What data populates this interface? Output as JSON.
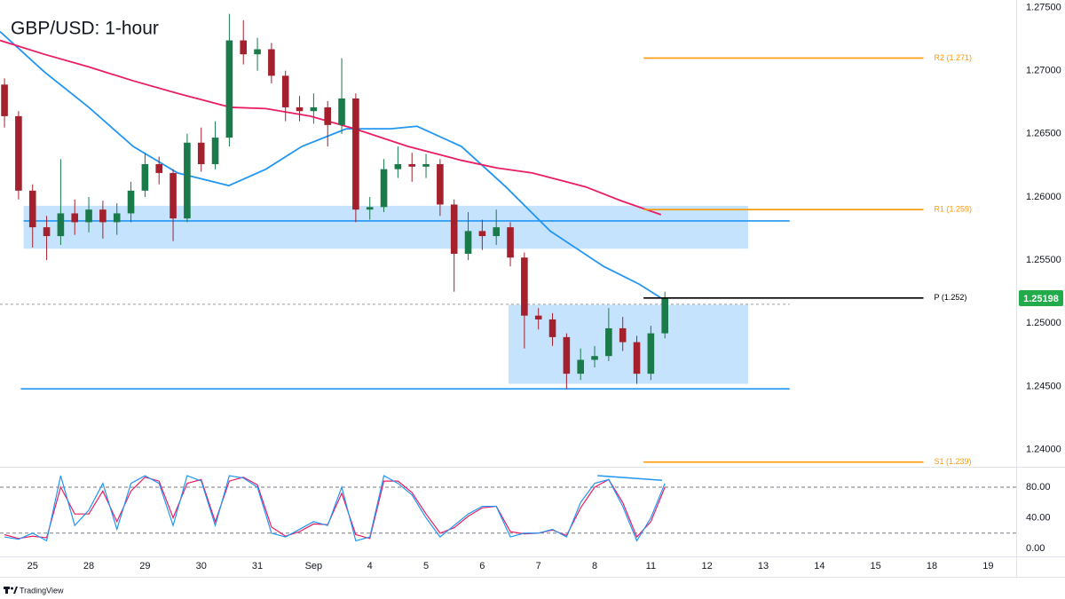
{
  "chart_data": [
    {
      "type": "candlestick",
      "title": "GBP/USD: 1-hour",
      "x": [
        -0.5,
        -0.25,
        0,
        0.25,
        0.5,
        0.75,
        1,
        1.25,
        1.5,
        1.75,
        2,
        2.25,
        2.5,
        2.75,
        3,
        3.25,
        3.5,
        3.75,
        4,
        4.25,
        4.5,
        4.75,
        5,
        5.25,
        5.5,
        5.75,
        6,
        6.25,
        6.5,
        6.75,
        7,
        7.25,
        7.5,
        7.75,
        8,
        8.25,
        8.5,
        8.75,
        9,
        9.25,
        9.5,
        9.75,
        10,
        10.25,
        10.5,
        10.75,
        11,
        11.25
      ],
      "open": [
        1.2689,
        1.2664,
        1.2605,
        1.2576,
        1.2569,
        1.2587,
        1.258,
        1.259,
        1.258,
        1.2587,
        1.2605,
        1.2626,
        1.2619,
        1.2583,
        1.2643,
        1.2626,
        1.2647,
        1.2724,
        1.2713,
        1.2717,
        1.2696,
        1.2671,
        1.2668,
        1.2671,
        1.2657,
        1.2678,
        1.259,
        1.2592,
        1.2622,
        1.2626,
        1.2624,
        1.2626,
        1.2594,
        1.2555,
        1.2573,
        1.2569,
        1.2576,
        1.2552,
        1.2506,
        1.2503,
        1.2489,
        1.246,
        1.2471,
        1.2474,
        1.2496,
        1.2485,
        1.246,
        1.2492
      ],
      "high": [
        1.2694,
        1.2668,
        1.261,
        1.2585,
        1.263,
        1.2598,
        1.26,
        1.2597,
        1.2595,
        1.2612,
        1.2635,
        1.2632,
        1.2622,
        1.265,
        1.2655,
        1.266,
        1.2745,
        1.274,
        1.2726,
        1.2722,
        1.27,
        1.268,
        1.2682,
        1.2676,
        1.271,
        1.2682,
        1.26,
        1.263,
        1.264,
        1.2635,
        1.2634,
        1.263,
        1.2598,
        1.2588,
        1.2582,
        1.259,
        1.258,
        1.2556,
        1.2512,
        1.2508,
        1.2492,
        1.248,
        1.2482,
        1.2512,
        1.2505,
        1.249,
        1.2498,
        1.2525
      ],
      "low": [
        1.2655,
        1.2598,
        1.256,
        1.255,
        1.2562,
        1.257,
        1.2572,
        1.2567,
        1.257,
        1.258,
        1.26,
        1.261,
        1.2565,
        1.258,
        1.262,
        1.2622,
        1.264,
        1.2705,
        1.27,
        1.269,
        1.266,
        1.266,
        1.2658,
        1.264,
        1.265,
        1.258,
        1.2582,
        1.2588,
        1.2615,
        1.2612,
        1.2615,
        1.2585,
        1.2525,
        1.255,
        1.2558,
        1.2562,
        1.2545,
        1.248,
        1.2495,
        1.2482,
        1.2448,
        1.2455,
        1.2465,
        1.247,
        1.2478,
        1.2452,
        1.2455,
        1.2488
      ],
      "close": [
        1.2664,
        1.2605,
        1.2576,
        1.2569,
        1.2587,
        1.258,
        1.259,
        1.258,
        1.2587,
        1.2605,
        1.2626,
        1.2619,
        1.2583,
        1.2643,
        1.2626,
        1.2647,
        1.2724,
        1.2713,
        1.2717,
        1.2696,
        1.2671,
        1.2668,
        1.2671,
        1.2657,
        1.2678,
        1.259,
        1.2592,
        1.2622,
        1.2626,
        1.2624,
        1.2626,
        1.2594,
        1.2555,
        1.2573,
        1.2569,
        1.2576,
        1.2552,
        1.2506,
        1.2503,
        1.2489,
        1.246,
        1.2471,
        1.2474,
        1.2496,
        1.2485,
        1.246,
        1.2492,
        1.25198
      ],
      "up_color": "#1b7a4a",
      "down_color": "#a3202c",
      "lines": [
        {
          "color": "#2196f3",
          "x": [
            -0.58,
            0.21,
            1.0,
            1.79,
            2.58,
            3.49,
            4.15,
            4.79,
            5.58,
            6.37,
            6.84,
            7.63,
            8.42,
            9.21,
            10.16,
            10.79,
            11.18
          ],
          "values": [
            1.2731,
            1.2699,
            1.2671,
            1.264,
            1.2619,
            1.2609,
            1.2622,
            1.264,
            1.2654,
            1.2654,
            1.2656,
            1.264,
            1.2608,
            1.2573,
            1.2545,
            1.2531,
            1.252
          ]
        },
        {
          "color": "#e91e63",
          "x": [
            -0.58,
            0.21,
            1.0,
            1.79,
            2.58,
            3.52,
            4.15,
            4.94,
            5.73,
            6.68,
            7.63,
            8.26,
            8.89,
            9.84,
            10.47,
            11.18
          ],
          "values": [
            1.2724,
            1.2713,
            1.2703,
            1.2692,
            1.2682,
            1.2671,
            1.267,
            1.2664,
            1.2654,
            1.264,
            1.2629,
            1.2623,
            1.2619,
            1.2608,
            1.2597,
            1.2586
          ]
        }
      ],
      "zones": [
        {
          "range": [
            1.2559,
            1.2593
          ],
          "x_range": [
            -0.16,
            12.73
          ],
          "color": "#bbdefb"
        },
        {
          "range": [
            1.2452,
            1.25146
          ],
          "x_range": [
            8.47,
            12.73
          ],
          "color": "#bbdefb"
        }
      ],
      "hlines": [
        {
          "value": 1.2581,
          "x_range": [
            -0.16,
            13.47
          ],
          "color": "#2196f3"
        },
        {
          "value": 1.2448,
          "x_range": [
            -0.21,
            13.47
          ],
          "color": "#2196f3"
        }
      ],
      "dotted_level": {
        "value": 1.2515,
        "x_range": [
          -0.58,
          13.47
        ],
        "color": "#9e9e9e"
      },
      "levels": [
        {
          "label": "R2 (1.271)",
          "value": 1.271,
          "x_range": [
            10.87,
            15.85
          ],
          "color": "#ff9800"
        },
        {
          "label": "R1 (1.259)",
          "value": 1.259,
          "x_range": [
            10.87,
            15.85
          ],
          "color": "#ff9800"
        },
        {
          "label": "P (1.252)",
          "value": 1.252,
          "x_range": [
            10.87,
            15.85
          ],
          "color": "#000000"
        },
        {
          "label": "S1 (1.239)",
          "value": 1.239,
          "x_range": [
            10.87,
            15.85
          ],
          "color": "#ff9800"
        }
      ],
      "last_price": 1.25198,
      "last_price_color": "#22ab4a",
      "xlim": [
        -0.58,
        17.5
      ],
      "ylim": [
        1.2387,
        1.2756
      ],
      "yticks": [
        {
          "value": 1.275,
          "label": "1.27500"
        },
        {
          "value": 1.27,
          "label": "1.27000"
        },
        {
          "value": 1.265,
          "label": "1.26500"
        },
        {
          "value": 1.26,
          "label": "1.26000"
        },
        {
          "value": 1.255,
          "label": "1.25500"
        },
        {
          "value": 1.25,
          "label": "1.25000"
        },
        {
          "value": 1.245,
          "label": "1.24500"
        },
        {
          "value": 1.24,
          "label": "1.24000"
        }
      ]
    },
    {
      "type": "line",
      "x": [
        -0.5,
        -0.25,
        0,
        0.25,
        0.5,
        0.75,
        1,
        1.25,
        1.5,
        1.75,
        2,
        2.25,
        2.5,
        2.75,
        3,
        3.25,
        3.5,
        3.75,
        4,
        4.25,
        4.5,
        4.75,
        5,
        5.25,
        5.5,
        5.75,
        6,
        6.25,
        6.5,
        6.75,
        7,
        7.25,
        7.5,
        7.75,
        8,
        8.25,
        8.5,
        8.75,
        9,
        9.25,
        9.5,
        9.75,
        10,
        10.25,
        10.5,
        10.75,
        11,
        11.25
      ],
      "series": [
        {
          "color": "#2196f3",
          "values": [
            15,
            12,
            20,
            10,
            95,
            30,
            50,
            85,
            25,
            85,
            95,
            85,
            30,
            95,
            88,
            30,
            95,
            92,
            80,
            20,
            15,
            25,
            35,
            30,
            80,
            10,
            15,
            95,
            85,
            70,
            40,
            15,
            30,
            45,
            55,
            55,
            15,
            20,
            20,
            25,
            15,
            60,
            85,
            90,
            55,
            10,
            40,
            85
          ]
        },
        {
          "color": "#e91e63",
          "values": [
            18,
            13,
            16,
            14,
            80,
            45,
            45,
            75,
            35,
            75,
            93,
            88,
            40,
            85,
            90,
            35,
            88,
            93,
            83,
            28,
            16,
            22,
            32,
            31,
            72,
            18,
            13,
            88,
            88,
            73,
            45,
            20,
            27,
            42,
            53,
            55,
            22,
            19,
            20,
            24,
            17,
            53,
            80,
            90,
            60,
            15,
            35,
            80
          ]
        }
      ],
      "trendline": {
        "x": [
          10.05,
          11.2
        ],
        "values": [
          95,
          89
        ],
        "color": "#2196f3"
      },
      "levels": [
        80,
        20
      ],
      "xlim": [
        -0.58,
        17.5
      ],
      "ylim": [
        -10.4,
        105.5
      ],
      "yticks": [
        {
          "value": 80,
          "label": "80.00"
        },
        {
          "value": 40,
          "label": "40.00"
        },
        {
          "value": 0,
          "label": "0.00"
        }
      ],
      "xticks": [
        {
          "value": 0,
          "label": "25"
        },
        {
          "value": 1,
          "label": "28"
        },
        {
          "value": 2,
          "label": "29"
        },
        {
          "value": 3,
          "label": "30"
        },
        {
          "value": 4,
          "label": "31"
        },
        {
          "value": 5,
          "label": "Sep"
        },
        {
          "value": 6,
          "label": "4"
        },
        {
          "value": 7,
          "label": "5"
        },
        {
          "value": 8,
          "label": "6"
        },
        {
          "value": 9,
          "label": "7"
        },
        {
          "value": 10,
          "label": "8"
        },
        {
          "value": 11,
          "label": "11"
        },
        {
          "value": 12,
          "label": "12"
        },
        {
          "value": 13,
          "label": "13"
        },
        {
          "value": 14,
          "label": "14"
        },
        {
          "value": 15,
          "label": "15"
        },
        {
          "value": 16,
          "label": "18"
        },
        {
          "value": 17,
          "label": "19"
        }
      ]
    }
  ],
  "footer": {
    "brand": "TradingView"
  }
}
